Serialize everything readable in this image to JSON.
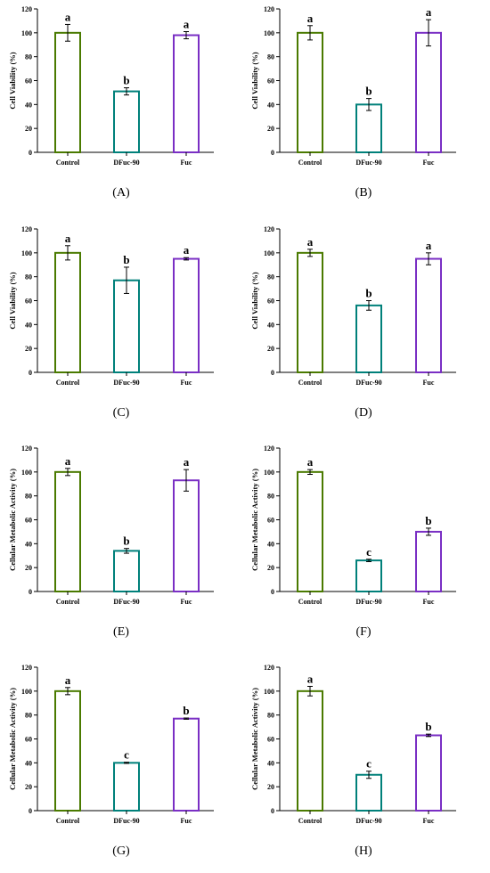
{
  "chart_data": [
    {
      "panel": "A",
      "panel_label": "(A)",
      "type": "bar",
      "ylabel": "Cell Viability (%)",
      "ylim": [
        0,
        120
      ],
      "yticks": [
        0,
        20,
        40,
        60,
        80,
        100,
        120
      ],
      "categories": [
        "Control",
        "DFuc-90",
        "Fuc"
      ],
      "values": [
        100,
        51,
        98
      ],
      "errors": [
        7,
        3,
        3
      ],
      "letters": [
        "a",
        "b",
        "a"
      ],
      "colors": [
        "#4a7a00",
        "#00807a",
        "#7a2fc4"
      ]
    },
    {
      "panel": "B",
      "panel_label": "(B)",
      "type": "bar",
      "ylabel": "Cell Viability (%)",
      "ylim": [
        0,
        120
      ],
      "yticks": [
        0,
        20,
        40,
        60,
        80,
        100,
        120
      ],
      "categories": [
        "Control",
        "DFuc-90",
        "Fuc"
      ],
      "values": [
        100,
        40,
        100
      ],
      "errors": [
        6,
        5,
        11
      ],
      "letters": [
        "a",
        "b",
        "a"
      ],
      "colors": [
        "#4a7a00",
        "#00807a",
        "#7a2fc4"
      ]
    },
    {
      "panel": "C",
      "panel_label": "(C)",
      "type": "bar",
      "ylabel": "Cell Viability (%)",
      "ylim": [
        0,
        120
      ],
      "yticks": [
        0,
        20,
        40,
        60,
        80,
        100,
        120
      ],
      "categories": [
        "Control",
        "DFuc-90",
        "Fuc"
      ],
      "values": [
        100,
        77,
        95
      ],
      "errors": [
        6,
        11,
        1
      ],
      "letters": [
        "a",
        "b",
        "a"
      ],
      "colors": [
        "#4a7a00",
        "#00807a",
        "#7a2fc4"
      ]
    },
    {
      "panel": "D",
      "panel_label": "(D)",
      "type": "bar",
      "ylabel": "Cell Viability (%)",
      "ylim": [
        0,
        120
      ],
      "yticks": [
        0,
        20,
        40,
        60,
        80,
        100,
        120
      ],
      "categories": [
        "Control",
        "DFuc-90",
        "Fuc"
      ],
      "values": [
        100,
        56,
        95
      ],
      "errors": [
        3,
        4,
        5
      ],
      "letters": [
        "a",
        "b",
        "a"
      ],
      "colors": [
        "#4a7a00",
        "#00807a",
        "#7a2fc4"
      ]
    },
    {
      "panel": "E",
      "panel_label": "(E)",
      "type": "bar",
      "ylabel": "Cellular Metabolic Activity (%)",
      "ylim": [
        0,
        120
      ],
      "yticks": [
        0,
        20,
        40,
        60,
        80,
        100,
        120
      ],
      "categories": [
        "Control",
        "DFuc-90",
        "Fuc"
      ],
      "values": [
        100,
        34,
        93
      ],
      "errors": [
        3,
        2,
        9
      ],
      "letters": [
        "a",
        "b",
        "a"
      ],
      "colors": [
        "#4a7a00",
        "#00807a",
        "#7a2fc4"
      ]
    },
    {
      "panel": "F",
      "panel_label": "(F)",
      "type": "bar",
      "ylabel": "Cellular Metabolic Activity (%)",
      "ylim": [
        0,
        120
      ],
      "yticks": [
        0,
        20,
        40,
        60,
        80,
        100,
        120
      ],
      "categories": [
        "Control",
        "DFuc-90",
        "Fuc"
      ],
      "values": [
        100,
        26,
        50
      ],
      "errors": [
        2,
        1,
        3
      ],
      "letters": [
        "a",
        "c",
        "b"
      ],
      "colors": [
        "#4a7a00",
        "#00807a",
        "#7a2fc4"
      ]
    },
    {
      "panel": "G",
      "panel_label": "(G)",
      "type": "bar",
      "ylabel": "Cellular Metabolic Activity (%)",
      "ylim": [
        0,
        120
      ],
      "yticks": [
        0,
        20,
        40,
        60,
        80,
        100,
        120
      ],
      "categories": [
        "Control",
        "DFuc-90",
        "Fuc"
      ],
      "values": [
        100,
        40,
        77
      ],
      "errors": [
        3,
        0.5,
        0.5
      ],
      "letters": [
        "a",
        "c",
        "b"
      ],
      "colors": [
        "#4a7a00",
        "#00807a",
        "#7a2fc4"
      ]
    },
    {
      "panel": "H",
      "panel_label": "(H)",
      "type": "bar",
      "ylabel": "Cellular Metabolic Activity (%)",
      "ylim": [
        0,
        120
      ],
      "yticks": [
        0,
        20,
        40,
        60,
        80,
        100,
        120
      ],
      "categories": [
        "Control",
        "DFuc-90",
        "Fuc"
      ],
      "values": [
        100,
        30,
        63
      ],
      "errors": [
        4,
        3,
        1
      ],
      "letters": [
        "a",
        "c",
        "b"
      ],
      "colors": [
        "#4a7a00",
        "#00807a",
        "#7a2fc4"
      ]
    }
  ]
}
